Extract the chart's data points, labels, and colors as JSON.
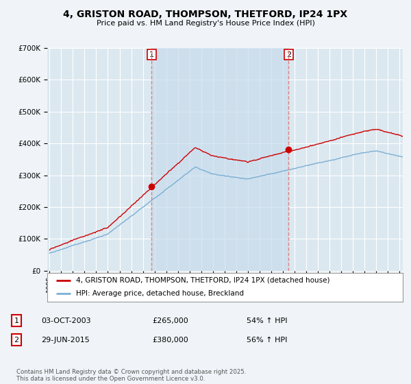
{
  "title": "4, GRISTON ROAD, THOMPSON, THETFORD, IP24 1PX",
  "subtitle": "Price paid vs. HM Land Registry's House Price Index (HPI)",
  "legend_label_red": "4, GRISTON ROAD, THOMPSON, THETFORD, IP24 1PX (detached house)",
  "legend_label_blue": "HPI: Average price, detached house, Breckland",
  "annotation1_label": "1",
  "annotation1_date": "03-OCT-2003",
  "annotation1_price": "£265,000",
  "annotation1_hpi": "54% ↑ HPI",
  "annotation2_label": "2",
  "annotation2_date": "29-JUN-2015",
  "annotation2_price": "£380,000",
  "annotation2_hpi": "56% ↑ HPI",
  "footer": "Contains HM Land Registry data © Crown copyright and database right 2025.\nThis data is licensed under the Open Government Licence v3.0.",
  "vline1_x": 2003.75,
  "vline2_x": 2015.5,
  "sale1_x": 2003.75,
  "sale1_y": 265000,
  "sale2_x": 2015.5,
  "sale2_y": 380000,
  "ylim": [
    0,
    700000
  ],
  "xlim": [
    1994.8,
    2025.3
  ],
  "background_color": "#f0f4f8",
  "plot_bg_color": "#dce8f0",
  "shade_color": "#c8dced",
  "red_color": "#cc0000",
  "blue_color": "#7bafd4",
  "grid_color": "#ffffff",
  "vline_color": "#e08080"
}
